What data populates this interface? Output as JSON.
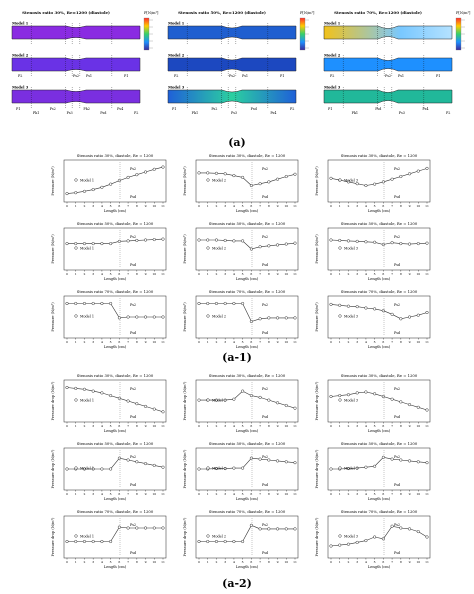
{
  "figure_labels": {
    "a": "(a)",
    "a1": "(a-1)",
    "a2": "(a-2)"
  },
  "contours": [
    {
      "title": "Stenosis ratio 30%, Re=1200 (diastole)",
      "unit": "P[N/m²]",
      "models": [
        "Model 1",
        "Model 2",
        "Model 3"
      ],
      "labels": {
        "m2": [
          "P2",
          "Ps2",
          "Ps1",
          "P1"
        ],
        "m3": [
          "P1",
          "Pk1",
          "Ps2",
          "Ps3",
          "Pk2",
          "Psd",
          "Ps4",
          "P2"
        ]
      },
      "colors": {
        "top": "#8a2be2",
        "mid": "#6a32e6",
        "bot": "#7a2fe0"
      }
    },
    {
      "title": "Stenosis ratio 50%, Re=1200 (diastole)",
      "unit": "P[N/m²]",
      "models": [
        "Model 1",
        "Model 2",
        "Model 3"
      ],
      "labels": {
        "m2": [
          "P2",
          "Ps2",
          "Ps1",
          "P1"
        ],
        "m3": [
          "P1",
          "Pk1",
          "Ps2",
          "Ps3",
          "Psd",
          "Ps4",
          "P2"
        ]
      },
      "colors": {
        "top": "#1f5fd0",
        "mid": "#1c48c0",
        "bot": "#2aa0a0"
      }
    },
    {
      "title": "Stenosis ratio 70%, Re=1200 (diastole)",
      "unit": "P[N/m²]",
      "models": [
        "Model 1",
        "Model 2",
        "Model 3"
      ],
      "labels": {
        "m2": [
          "P2",
          "Ps2",
          "Ps1",
          "P1"
        ],
        "m3": [
          "P1",
          "Pk1",
          "Psd",
          "Ps3",
          "Ps4",
          "P2"
        ]
      },
      "colors": {
        "top": "#f2c21b",
        "mid": "#1e90ff",
        "bot": "#21b89a"
      }
    }
  ],
  "plot_axes": {
    "xlabel": "Length (cm)",
    "ylabel_a1": "Pressure (N/m²)",
    "ylabel_a2": "Pressure drop (N/m²)",
    "xticks": [
      "0",
      "1",
      "2",
      "3",
      "4",
      "5",
      "6",
      "7",
      "8",
      "9",
      "10",
      "11"
    ]
  },
  "row_titles": [
    "Stenosis ratio 30%, diastole, Re = 1200",
    "Stenosis ratio 50%, diastole, Re = 1200",
    "Stenosis ratio 70%, diastole, Re = 1200"
  ],
  "col_models": [
    "Model 1",
    "Model 2",
    "Model 3"
  ],
  "annotations": {
    "ps2": "Ps2",
    "psd": "Psd"
  },
  "chart_data": [
    {
      "type": "line",
      "group": "a-1",
      "title": "Stenosis ratio 30%, diastole, Re = 1200",
      "series": [
        {
          "name": "Model 1",
          "y": [
            12,
            14,
            17,
            21,
            26,
            33,
            41,
            48,
            54,
            60,
            66,
            71
          ]
        }
      ]
    },
    {
      "type": "line",
      "group": "a-1",
      "title": "Stenosis ratio 30%, diastole, Re = 1200",
      "series": [
        {
          "name": "Model 2",
          "y": [
            58,
            58,
            57,
            56,
            52,
            48,
            30,
            34,
            38,
            44,
            50,
            55
          ]
        }
      ]
    },
    {
      "type": "line",
      "group": "a-1",
      "title": "Stenosis ratio 30%, diastole, Re = 1200",
      "series": [
        {
          "name": "Model 3",
          "y": [
            46,
            42,
            38,
            34,
            30,
            33,
            38,
            44,
            50,
            56,
            62,
            68
          ]
        }
      ]
    },
    {
      "type": "line",
      "group": "a-1",
      "title": "Stenosis ratio 50%, diastole, Re = 1200",
      "series": [
        {
          "name": "Model 1",
          "y": [
            52,
            52,
            52,
            52,
            52,
            52,
            57,
            58,
            59,
            60,
            61,
            62
          ]
        }
      ]
    },
    {
      "type": "line",
      "group": "a-1",
      "title": "Stenosis ratio 50%, diastole, Re = 1200",
      "series": [
        {
          "name": "Model 2",
          "y": [
            60,
            60,
            60,
            59,
            58,
            58,
            40,
            45,
            47,
            49,
            51,
            53
          ]
        }
      ]
    },
    {
      "type": "line",
      "group": "a-1",
      "title": "Stenosis ratio 50%, diastole, Re = 1200",
      "series": [
        {
          "name": "Model 3",
          "y": [
            60,
            59,
            58,
            57,
            56,
            55,
            50,
            54,
            52,
            51,
            52,
            53
          ]
        }
      ]
    },
    {
      "type": "line",
      "group": "a-1",
      "title": "Stenosis ratio 70%, diastole, Re = 1200",
      "series": [
        {
          "name": "Model 1",
          "y": [
            70,
            70,
            70,
            70,
            70,
            70,
            38,
            40,
            40,
            40,
            40,
            40
          ]
        }
      ]
    },
    {
      "type": "line",
      "group": "a-1",
      "title": "Stenosis ratio 70%, diastole, Re = 1200",
      "series": [
        {
          "name": "Model 2",
          "y": [
            70,
            70,
            70,
            70,
            70,
            70,
            30,
            36,
            38,
            38,
            38,
            38
          ]
        }
      ]
    },
    {
      "type": "line",
      "group": "a-1",
      "title": "Stenosis ratio 70%, diastole, Re = 1200",
      "series": [
        {
          "name": "Model 3",
          "y": [
            68,
            66,
            64,
            63,
            60,
            58,
            54,
            46,
            36,
            40,
            44,
            50
          ]
        }
      ]
    },
    {
      "type": "line",
      "group": "a-2",
      "title": "Stenosis ratio 30%, diastole, Re = 1200",
      "series": [
        {
          "name": "Model 1",
          "y": [
            70,
            68,
            66,
            62,
            58,
            52,
            46,
            40,
            34,
            28,
            22,
            16
          ]
        }
      ]
    },
    {
      "type": "line",
      "group": "a-2",
      "title": "Stenosis ratio 30%, diastole, Re = 1200",
      "series": [
        {
          "name": "Model 2",
          "y": [
            42,
            42,
            42,
            42,
            44,
            62,
            52,
            48,
            42,
            36,
            30,
            24
          ]
        }
      ]
    },
    {
      "type": "line",
      "group": "a-2",
      "title": "Stenosis ratio 30%, diastole, Re = 1200",
      "series": [
        {
          "name": "Model 3",
          "y": [
            50,
            52,
            54,
            58,
            60,
            56,
            50,
            44,
            38,
            32,
            26,
            20
          ]
        }
      ]
    },
    {
      "type": "line",
      "group": "a-2",
      "title": "Stenosis ratio 50%, diastole, Re = 1200",
      "series": [
        {
          "name": "Model 1",
          "y": [
            40,
            40,
            40,
            40,
            40,
            40,
            64,
            60,
            56,
            52,
            48,
            44
          ]
        }
      ]
    },
    {
      "type": "line",
      "group": "a-2",
      "title": "Stenosis ratio 50%, diastole, Re = 1200",
      "series": [
        {
          "name": "Model 2",
          "y": [
            40,
            40,
            41,
            41,
            42,
            42,
            64,
            62,
            60,
            58,
            56,
            54
          ]
        }
      ]
    },
    {
      "type": "line",
      "group": "a-2",
      "title": "Stenosis ratio 50%, diastole, Re = 1200",
      "series": [
        {
          "name": "Model 3",
          "y": [
            40,
            40,
            41,
            42,
            44,
            46,
            66,
            62,
            60,
            58,
            56,
            54
          ]
        }
      ]
    },
    {
      "type": "line",
      "group": "a-2",
      "title": "Stenosis ratio 70%, diastole, Re = 1200",
      "series": [
        {
          "name": "Model 1",
          "y": [
            30,
            30,
            30,
            30,
            30,
            30,
            62,
            60,
            60,
            60,
            60,
            60
          ]
        }
      ]
    },
    {
      "type": "line",
      "group": "a-2",
      "title": "Stenosis ratio 70%, diastole, Re = 1200",
      "series": [
        {
          "name": "Model 2",
          "y": [
            30,
            30,
            30,
            30,
            30,
            30,
            66,
            58,
            58,
            58,
            58,
            58
          ]
        }
      ]
    },
    {
      "type": "line",
      "group": "a-2",
      "title": "Stenosis ratio 70%, diastole, Re = 1200",
      "series": [
        {
          "name": "Model 3",
          "y": [
            20,
            22,
            24,
            28,
            32,
            40,
            36,
            64,
            60,
            58,
            52,
            40
          ]
        }
      ]
    }
  ]
}
